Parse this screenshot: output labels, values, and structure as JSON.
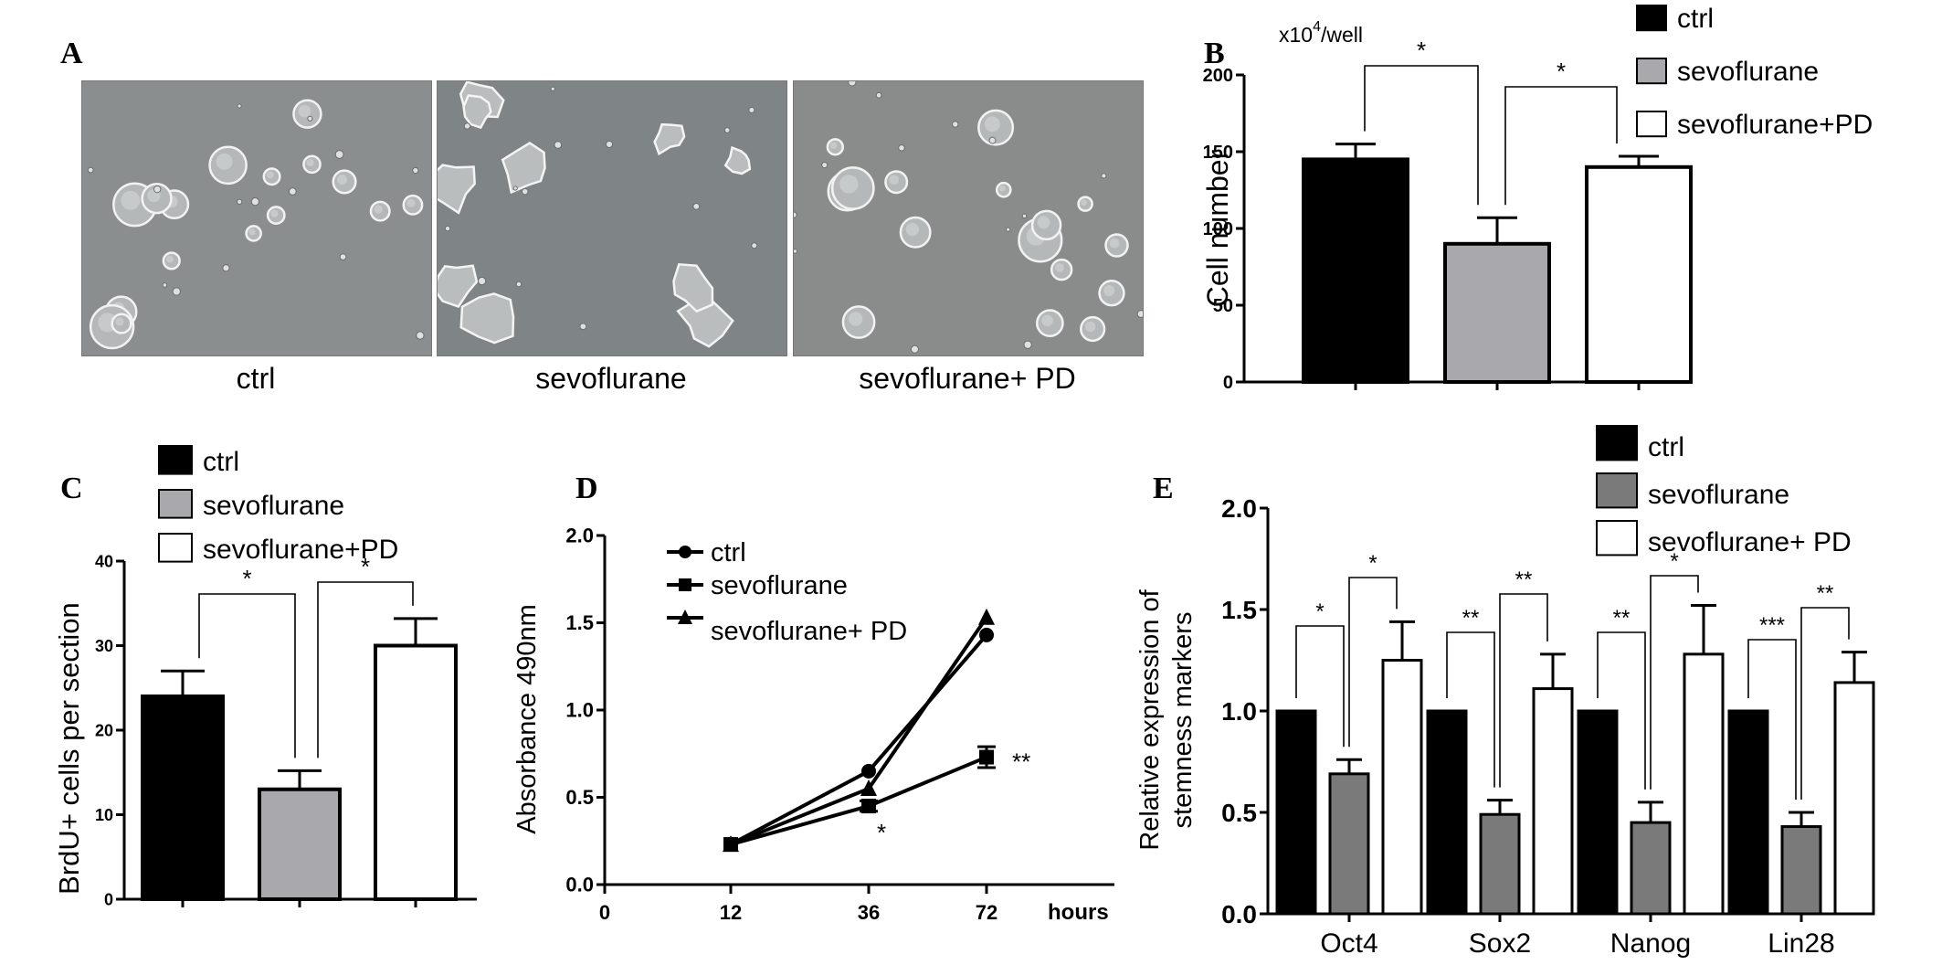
{
  "panels": {
    "a": "A",
    "b": "B",
    "c": "C",
    "d": "D",
    "e": "E"
  },
  "micrographs": [
    {
      "label": "ctrl",
      "bg": "#8a8e8e",
      "style": "round"
    },
    {
      "label": "sevoflurane",
      "bg": "#7f8486",
      "style": "irregular"
    },
    {
      "label": "sevoflurane+ PD",
      "bg": "#898c8b",
      "style": "round"
    }
  ],
  "colors": {
    "ctrl": "#000000",
    "sevoflurane": "#a9a9ad",
    "sevoflurane_e": "#7a7a7a",
    "pd": "#ffffff"
  },
  "chart_data": [
    {
      "id": "B",
      "type": "bar",
      "categories": [
        "ctrl",
        "sevoflurane",
        "sevoflurane+PD"
      ],
      "values": [
        145,
        90,
        140
      ],
      "errors": [
        10,
        17,
        7
      ],
      "ylabel": "Cell  number",
      "unit_prefix": "x10",
      "unit_exp": "4",
      "unit_suffix": "/well",
      "ylim": [
        0,
        200
      ],
      "yticks": [
        0,
        50,
        100,
        150,
        200
      ],
      "legend": [
        "ctrl",
        "sevoflurane",
        "sevoflurane+PD"
      ],
      "legend_position": "top-right",
      "significance": [
        {
          "from": 0,
          "to": 1,
          "label": "*"
        },
        {
          "from": 1,
          "to": 2,
          "label": "*"
        }
      ]
    },
    {
      "id": "C",
      "type": "bar",
      "categories": [
        "ctrl",
        "sevoflurane",
        "sevoflurane+PD"
      ],
      "values": [
        24,
        13,
        30
      ],
      "errors": [
        3,
        2.2,
        3.2
      ],
      "ylabel": "BrdU+ cells per section",
      "ylim": [
        0,
        40
      ],
      "yticks": [
        0,
        10,
        20,
        30,
        40
      ],
      "legend": [
        "ctrl",
        "sevoflurane",
        "sevoflurane+PD"
      ],
      "legend_position": "top",
      "significance": [
        {
          "from": 0,
          "to": 1,
          "label": "*"
        },
        {
          "from": 1,
          "to": 2,
          "label": "*"
        }
      ]
    },
    {
      "id": "D",
      "type": "line",
      "x": [
        12,
        36,
        72
      ],
      "xticks": [
        0,
        12,
        36,
        72
      ],
      "xlabel": "hours",
      "ylabel": "Absorbance 490nm",
      "ylim": [
        0,
        2.0
      ],
      "yticks": [
        "0.0",
        "0.5",
        "1.0",
        "1.5",
        "2.0"
      ],
      "series": [
        {
          "name": "ctrl",
          "marker": "circle",
          "values": [
            0.23,
            0.65,
            1.43
          ]
        },
        {
          "name": "sevoflurane",
          "marker": "square",
          "values": [
            0.23,
            0.45,
            0.73
          ],
          "errors": [
            0,
            0.03,
            0.06
          ]
        },
        {
          "name": "sevoflurane+ PD",
          "marker": "triangle",
          "values": [
            0.23,
            0.55,
            1.53
          ]
        }
      ],
      "legend_position": "top-left",
      "annotations": [
        {
          "label": "**",
          "series": 1,
          "index": 2
        },
        {
          "label": "*",
          "series": 1,
          "index": 1
        }
      ]
    },
    {
      "id": "E",
      "type": "bar",
      "categories": [
        "Oct4",
        "Sox2",
        "Nanog",
        "Lin28"
      ],
      "series": [
        {
          "name": "ctrl",
          "values": [
            1.0,
            1.0,
            1.0,
            1.0
          ],
          "errors": [
            0,
            0,
            0,
            0
          ]
        },
        {
          "name": "sevoflurane",
          "values": [
            0.69,
            0.49,
            0.45,
            0.43
          ],
          "errors": [
            0.07,
            0.07,
            0.1,
            0.07
          ]
        },
        {
          "name": "sevoflurane+ PD",
          "values": [
            1.25,
            1.11,
            1.28,
            1.14
          ],
          "errors": [
            0.19,
            0.17,
            0.24,
            0.15
          ]
        }
      ],
      "ylabel_line1": "Relative expression of",
      "ylabel_line2": "stemness markers",
      "ylim": [
        0,
        2.0
      ],
      "yticks": [
        "0.0",
        "0.5",
        "1.0",
        "1.5",
        "2.0"
      ],
      "legend_position": "top-right",
      "significance": [
        {
          "cat": 0,
          "a": 0,
          "b": 1,
          "label": "*"
        },
        {
          "cat": 0,
          "a": 1,
          "b": 2,
          "label": "*"
        },
        {
          "cat": 1,
          "a": 0,
          "b": 1,
          "label": "**"
        },
        {
          "cat": 1,
          "a": 1,
          "b": 2,
          "label": "**"
        },
        {
          "cat": 2,
          "a": 0,
          "b": 1,
          "label": "**"
        },
        {
          "cat": 2,
          "a": 1,
          "b": 2,
          "label": "*"
        },
        {
          "cat": 3,
          "a": 0,
          "b": 1,
          "label": "***"
        },
        {
          "cat": 3,
          "a": 1,
          "b": 2,
          "label": "**"
        }
      ]
    }
  ]
}
